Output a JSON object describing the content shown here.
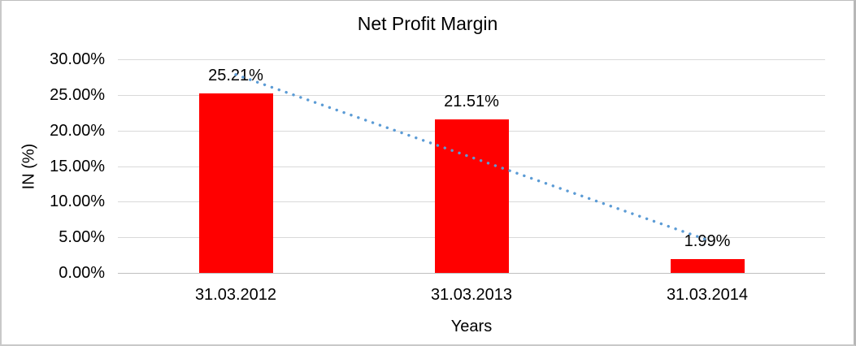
{
  "chart_data": {
    "type": "bar",
    "title": "Net Profit Margin",
    "categories": [
      "31.03.2012",
      "31.03.2013",
      "31.03.2014"
    ],
    "values": [
      25.21,
      21.51,
      1.99
    ],
    "data_labels": [
      "25.21%",
      "21.51%",
      "1.99%"
    ],
    "xlabel": "Years",
    "ylabel": "IN (%)",
    "ylim": [
      0,
      30
    ],
    "ytick_step": 5,
    "ytick_labels": [
      "0.00%",
      "5.00%",
      "10.00%",
      "15.00%",
      "20.00%",
      "25.00%",
      "30.00%"
    ],
    "grid": true,
    "legend": "none",
    "colors": {
      "bar": "#ff0000",
      "gridline": "#d9d9d9",
      "axis_line": "#bfbfbf",
      "text": "#000000"
    },
    "trendline": {
      "type": "linear",
      "style": "dotted",
      "color": "#5b9bd5"
    }
  }
}
